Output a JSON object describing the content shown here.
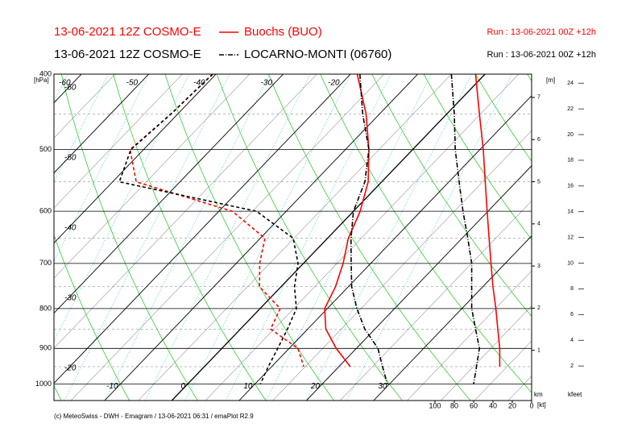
{
  "chart_data": {
    "type": "emagram",
    "run_title": "13-06-2021 12Z COSMO-E",
    "run_info": "Run : 13-06-2021 00Z +12h",
    "y_unit": "[hPa]",
    "y": [
      400,
      450,
      500,
      550,
      600,
      650,
      700,
      750,
      800,
      850,
      900,
      950,
      1000
    ],
    "ylim": [
      400,
      1050
    ],
    "yticks": [
      400,
      500,
      600,
      700,
      800,
      900,
      1000
    ],
    "log_y": true,
    "xticks": [
      -60,
      -50,
      -40,
      -30,
      -20,
      -10,
      0,
      10,
      20,
      30
    ],
    "height_unit": "[m]",
    "km_label": "km",
    "km_ticks": [
      1,
      2,
      3,
      4,
      5,
      6,
      7
    ],
    "kfeet_label": "kfeet",
    "kfeet_ticks": [
      2,
      4,
      6,
      8,
      10,
      12,
      14,
      16,
      18,
      20,
      22,
      24
    ],
    "wind_unit": "[kt]",
    "wind_lim": [
      0,
      100
    ],
    "wind_ticks": [
      100,
      80,
      60,
      40,
      20,
      0
    ],
    "stations": [
      {
        "name": "Buochs (BUO)",
        "color": "#ff0000",
        "legend_dash": "",
        "temperature": [
          -19,
          -12,
          -6.5,
          -2,
          1,
          3.1,
          5.9,
          8.1,
          9.6,
          12.7,
          17,
          21.7,
          null
        ],
        "dewpoint": [
          -40.5,
          -41,
          -42,
          -36.5,
          -18,
          -9.3,
          -6.5,
          -3.2,
          3,
          4.5,
          11.3,
          14.8,
          null
        ],
        "wind": [
          58,
          54,
          50,
          48,
          46,
          44,
          42,
          40,
          37,
          35,
          33,
          33,
          null
        ]
      },
      {
        "name": "LOCARNO-MONTI (06760)",
        "color": "#000000",
        "legend_dash": "6 2 1 2",
        "temperature": [
          -18.6,
          -12.5,
          -6.5,
          -2.5,
          0,
          3.5,
          7.1,
          10.5,
          14.4,
          18.5,
          23.2,
          26.5,
          29.7
        ],
        "dewpoint": [
          -40.5,
          -41,
          -41.9,
          -39,
          -14.4,
          -5.1,
          -0.8,
          2,
          5.4,
          7,
          8.3,
          9.5,
          10.8
        ],
        "wind": [
          83,
          80,
          79,
          75,
          71,
          66,
          62,
          62,
          62,
          58,
          54,
          57,
          60
        ]
      }
    ],
    "footer": "(c) MeteoSwiss - DWH - Emagram / 13-06-2021 06:31 / emaPlot R2.9"
  }
}
